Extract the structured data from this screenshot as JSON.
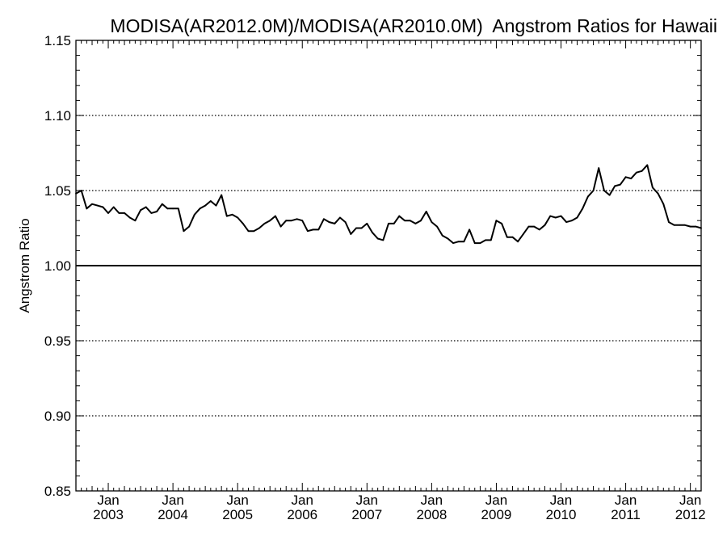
{
  "chart_data": {
    "type": "line",
    "title": "MODISA(AR2012.0M)/MODISA(AR2010.0M)  Angstrom Ratios for Hawaii",
    "xlabel": "",
    "ylabel": "Angstrom Ratio",
    "x_start": "2002-07",
    "x_end": "2012-03",
    "ylim": [
      0.85,
      1.15
    ],
    "yticks": [
      "0.85",
      "0.90",
      "0.95",
      "1.00",
      "1.05",
      "1.10",
      "1.15"
    ],
    "xticks": [
      {
        "month": "Jan",
        "year": "2003",
        "date": "2003-01"
      },
      {
        "month": "Jan",
        "year": "2004",
        "date": "2004-01"
      },
      {
        "month": "Jan",
        "year": "2005",
        "date": "2005-01"
      },
      {
        "month": "Jan",
        "year": "2006",
        "date": "2006-01"
      },
      {
        "month": "Jan",
        "year": "2007",
        "date": "2007-01"
      },
      {
        "month": "Jan",
        "year": "2008",
        "date": "2008-01"
      },
      {
        "month": "Jan",
        "year": "2009",
        "date": "2009-01"
      },
      {
        "month": "Jan",
        "year": "2010",
        "date": "2010-01"
      },
      {
        "month": "Jan",
        "year": "2011",
        "date": "2011-01"
      },
      {
        "month": "Jan",
        "year": "2012",
        "date": "2012-01"
      }
    ],
    "dotted_gridlines": [
      0.9,
      0.95,
      1.05,
      1.1
    ],
    "reference_line": 1.0,
    "series": [
      {
        "x": [
          "2002-07",
          "2002-08",
          "2002-09",
          "2002-10",
          "2002-11",
          "2002-12",
          "2003-01",
          "2003-02",
          "2003-03",
          "2003-04",
          "2003-05",
          "2003-06",
          "2003-07",
          "2003-08",
          "2003-09",
          "2003-10",
          "2003-11",
          "2003-12",
          "2004-01",
          "2004-02",
          "2004-03",
          "2004-04",
          "2004-05",
          "2004-06",
          "2004-07",
          "2004-08",
          "2004-09",
          "2004-10",
          "2004-11",
          "2004-12",
          "2005-01",
          "2005-02",
          "2005-03",
          "2005-04",
          "2005-05",
          "2005-06",
          "2005-07",
          "2005-08",
          "2005-09",
          "2005-10",
          "2005-11",
          "2005-12",
          "2006-01",
          "2006-02",
          "2006-03",
          "2006-04",
          "2006-05",
          "2006-06",
          "2006-07",
          "2006-08",
          "2006-09",
          "2006-10",
          "2006-11",
          "2006-12",
          "2007-01",
          "2007-02",
          "2007-03",
          "2007-04",
          "2007-05",
          "2007-06",
          "2007-07",
          "2007-08",
          "2007-09",
          "2007-10",
          "2007-11",
          "2007-12",
          "2008-01",
          "2008-02",
          "2008-03",
          "2008-04",
          "2008-05",
          "2008-06",
          "2008-07",
          "2008-08",
          "2008-09",
          "2008-10",
          "2008-11",
          "2008-12",
          "2009-01",
          "2009-02",
          "2009-03",
          "2009-04",
          "2009-05",
          "2009-06",
          "2009-07",
          "2009-08",
          "2009-09",
          "2009-10",
          "2009-11",
          "2009-12",
          "2010-01",
          "2010-02",
          "2010-03",
          "2010-04",
          "2010-05",
          "2010-06",
          "2010-07",
          "2010-08",
          "2010-09",
          "2010-10",
          "2010-11",
          "2010-12",
          "2011-01",
          "2011-02",
          "2011-03",
          "2011-04",
          "2011-05",
          "2011-06",
          "2011-07",
          "2011-08",
          "2011-09",
          "2011-10",
          "2011-11",
          "2011-12",
          "2012-01",
          "2012-02",
          "2012-03"
        ],
        "values": [
          1.048,
          1.05,
          1.038,
          1.041,
          1.04,
          1.039,
          1.035,
          1.039,
          1.035,
          1.035,
          1.032,
          1.03,
          1.037,
          1.039,
          1.035,
          1.036,
          1.041,
          1.038,
          1.038,
          1.038,
          1.023,
          1.026,
          1.034,
          1.038,
          1.04,
          1.043,
          1.04,
          1.047,
          1.033,
          1.034,
          1.032,
          1.028,
          1.023,
          1.023,
          1.025,
          1.028,
          1.03,
          1.033,
          1.026,
          1.03,
          1.03,
          1.031,
          1.03,
          1.023,
          1.024,
          1.024,
          1.031,
          1.029,
          1.028,
          1.032,
          1.029,
          1.021,
          1.025,
          1.025,
          1.028,
          1.022,
          1.018,
          1.017,
          1.028,
          1.028,
          1.033,
          1.03,
          1.03,
          1.028,
          1.03,
          1.036,
          1.029,
          1.026,
          1.02,
          1.018,
          1.015,
          1.016,
          1.016,
          1.024,
          1.015,
          1.015,
          1.017,
          1.017,
          1.03,
          1.028,
          1.019,
          1.019,
          1.016,
          1.021,
          1.026,
          1.026,
          1.024,
          1.027,
          1.033,
          1.032,
          1.033,
          1.029,
          1.03,
          1.032,
          1.038,
          1.046,
          1.05,
          1.065,
          1.05,
          1.047,
          1.053,
          1.054,
          1.059,
          1.058,
          1.062,
          1.063,
          1.067,
          1.052,
          1.048,
          1.041,
          1.029,
          1.027,
          1.027,
          1.027,
          1.026,
          1.026,
          1.025
        ]
      }
    ],
    "grid": "dotted horizontal",
    "legend": "none"
  }
}
